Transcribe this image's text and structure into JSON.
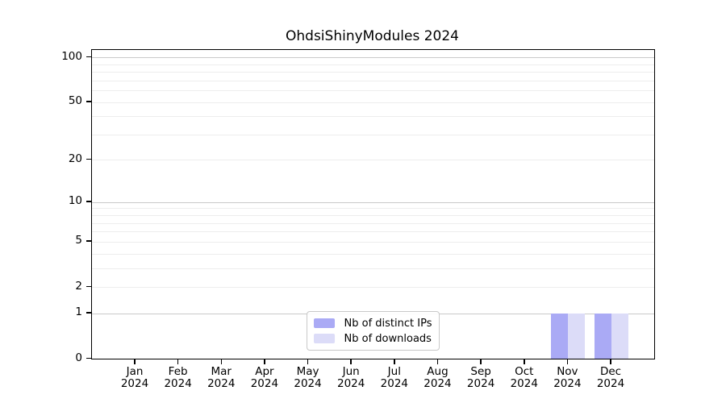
{
  "chart_data": {
    "type": "bar",
    "title": "OhdsiShinyModules 2024",
    "categories": [
      "Jan",
      "Feb",
      "Mar",
      "Apr",
      "May",
      "Jun",
      "Jul",
      "Aug",
      "Sep",
      "Oct",
      "Nov",
      "Dec"
    ],
    "category_year": "2024",
    "series": [
      {
        "name": "Nb of distinct IPs",
        "color": "#aaaaf5",
        "values": [
          0,
          0,
          0,
          0,
          0,
          0,
          0,
          0,
          0,
          0,
          1,
          1
        ]
      },
      {
        "name": "Nb of downloads",
        "color": "#dcdcf8",
        "values": [
          0,
          0,
          0,
          0,
          0,
          0,
          0,
          0,
          0,
          0,
          1,
          1
        ]
      }
    ],
    "y_axis": {
      "scale": "log1p",
      "tick_labels": [
        0,
        1,
        2,
        5,
        10,
        20,
        50,
        100
      ],
      "range_top": 112
    },
    "grid": {
      "decade_lines": [
        1,
        10,
        100
      ],
      "minor_lines": [
        2,
        3,
        4,
        5,
        6,
        7,
        8,
        9,
        20,
        30,
        40,
        50,
        60,
        70,
        80,
        90
      ],
      "decade_color": "#c9c9c9",
      "minor_color": "#ededed"
    },
    "legend": {
      "position": "lower center",
      "entries": [
        "Nb of distinct IPs",
        "Nb of downloads"
      ]
    },
    "colors": {
      "frame": "#000000",
      "background": "#ffffff"
    }
  }
}
